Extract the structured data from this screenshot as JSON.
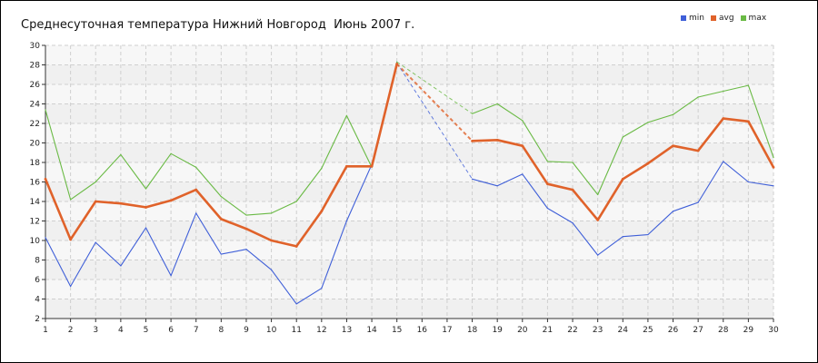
{
  "chart_data": {
    "type": "line",
    "title": "Среднесуточная температура Нижний Новгород  Июнь 2007 г.",
    "xlabel": "",
    "ylabel": "",
    "x": [
      1,
      2,
      3,
      4,
      5,
      6,
      7,
      8,
      9,
      10,
      11,
      12,
      13,
      14,
      15,
      16,
      17,
      18,
      19,
      20,
      21,
      22,
      23,
      24,
      25,
      26,
      27,
      28,
      29,
      30
    ],
    "x_tick_labels": [
      "1",
      "2",
      "3",
      "4",
      "5",
      "6",
      "7",
      "8",
      "9",
      "10",
      "11",
      "12",
      "13",
      "14",
      "15",
      "16",
      "17",
      "18",
      "19",
      "20",
      "21",
      "22",
      "23",
      "24",
      "25",
      "26",
      "27",
      "28",
      "29",
      "30"
    ],
    "ylim": [
      2,
      30
    ],
    "yticks": [
      2,
      4,
      6,
      8,
      10,
      12,
      14,
      16,
      18,
      20,
      22,
      24,
      26,
      28,
      30
    ],
    "grid": true,
    "legend": "top-right",
    "series": [
      {
        "name": "min",
        "color": "#3f5fd8",
        "points": [
          [
            1,
            10.3
          ],
          [
            2,
            5.3
          ],
          [
            3,
            9.8
          ],
          [
            4,
            7.4
          ],
          [
            5,
            11.3
          ],
          [
            6,
            6.4
          ],
          [
            7,
            12.8
          ],
          [
            8,
            8.6
          ],
          [
            9,
            9.1
          ],
          [
            10,
            7.0
          ],
          [
            11,
            3.5
          ],
          [
            12,
            5.1
          ],
          [
            13,
            12.0
          ],
          [
            14,
            17.8
          ],
          [
            15,
            28.2
          ],
          [
            18,
            16.3
          ],
          [
            19,
            15.6
          ],
          [
            20,
            16.8
          ],
          [
            21,
            13.3
          ],
          [
            22,
            11.8
          ],
          [
            23,
            8.5
          ],
          [
            24,
            10.4
          ],
          [
            25,
            10.6
          ],
          [
            26,
            13.0
          ],
          [
            27,
            13.9
          ],
          [
            28,
            18.1
          ],
          [
            29,
            16.0
          ],
          [
            30,
            15.6
          ]
        ]
      },
      {
        "name": "avg",
        "color": "#e0622a",
        "points": [
          [
            1,
            16.3
          ],
          [
            2,
            10.1
          ],
          [
            3,
            14.0
          ],
          [
            4,
            13.8
          ],
          [
            5,
            13.4
          ],
          [
            6,
            14.1
          ],
          [
            7,
            15.2
          ],
          [
            8,
            12.2
          ],
          [
            9,
            11.2
          ],
          [
            10,
            10.0
          ],
          [
            11,
            9.4
          ],
          [
            12,
            13.0
          ],
          [
            13,
            17.6
          ],
          [
            14,
            17.6
          ],
          [
            15,
            28.1
          ],
          [
            18,
            20.2
          ],
          [
            19,
            20.3
          ],
          [
            20,
            19.7
          ],
          [
            21,
            15.8
          ],
          [
            22,
            15.2
          ],
          [
            23,
            12.1
          ],
          [
            24,
            16.3
          ],
          [
            25,
            17.9
          ],
          [
            26,
            19.7
          ],
          [
            27,
            19.2
          ],
          [
            28,
            22.5
          ],
          [
            29,
            22.2
          ],
          [
            30,
            17.5
          ]
        ]
      },
      {
        "name": "max",
        "color": "#6aba45",
        "points": [
          [
            1,
            23.4
          ],
          [
            2,
            14.2
          ],
          [
            3,
            16.0
          ],
          [
            4,
            18.8
          ],
          [
            5,
            15.3
          ],
          [
            6,
            18.9
          ],
          [
            7,
            17.5
          ],
          [
            8,
            14.5
          ],
          [
            9,
            12.6
          ],
          [
            10,
            12.8
          ],
          [
            11,
            14.0
          ],
          [
            12,
            17.4
          ],
          [
            13,
            22.8
          ],
          [
            14,
            17.5
          ],
          [
            15,
            28.3
          ],
          [
            18,
            23.0
          ],
          [
            19,
            24.0
          ],
          [
            20,
            22.3
          ],
          [
            21,
            18.1
          ],
          [
            22,
            18.0
          ],
          [
            23,
            14.7
          ],
          [
            24,
            20.6
          ],
          [
            25,
            22.1
          ],
          [
            26,
            22.9
          ],
          [
            27,
            24.7
          ],
          [
            28,
            25.3
          ],
          [
            29,
            25.9
          ],
          [
            30,
            18.5
          ]
        ]
      }
    ]
  }
}
